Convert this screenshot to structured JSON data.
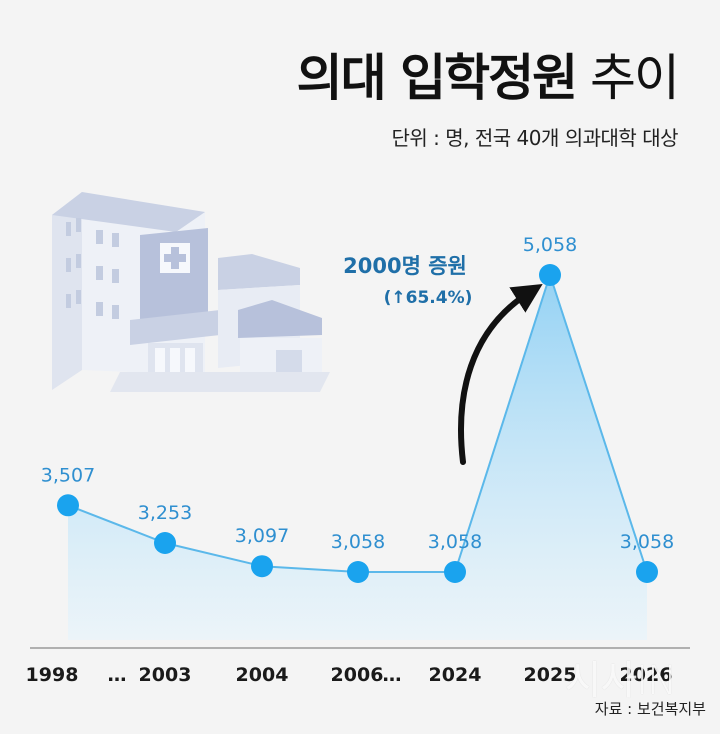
{
  "header": {
    "title_bold": "의대 입학정원",
    "title_light": "추이",
    "unit_text": "단위 : 명, 전국 40개 의과대학 대상"
  },
  "annotation": {
    "line1": "2000명 증원",
    "line2": "(↑65.4%)"
  },
  "footer": {
    "source": "자료 : 보건복지부",
    "watermark": "시사IN"
  },
  "colors": {
    "point": "#1aa3ee",
    "line": "#5bb8ea",
    "label": "#2f8fd0",
    "annotation": "#1f6fa8"
  },
  "chart_data": {
    "type": "area",
    "title": "의대 입학정원 추이",
    "unit": "명",
    "categories": [
      "1998",
      "…",
      "2003",
      "2004",
      "2006",
      "…",
      "2024",
      "2025",
      "2026"
    ],
    "x": [
      "1998",
      "2003",
      "2004",
      "2006",
      "2024",
      "2025",
      "2026"
    ],
    "series": [
      {
        "values": [
          3507,
          3253,
          3097,
          3058,
          3058,
          5058,
          3058
        ],
        "labels": [
          "3,507",
          "3,253",
          "3,097",
          "3,058",
          "3,058",
          "5,058",
          "3,058"
        ]
      }
    ],
    "ylim": [
      2600,
      5058
    ],
    "grid": false,
    "legend": "none"
  }
}
